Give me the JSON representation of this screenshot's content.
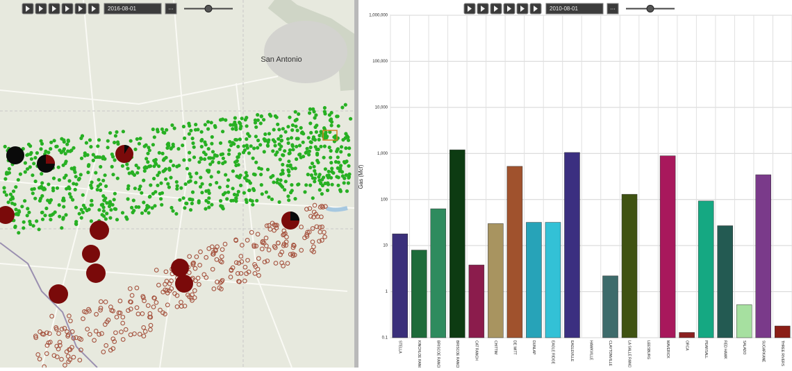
{
  "map_panel": {
    "toolbar": {
      "date": "2016-08-01",
      "more_button": "..."
    },
    "place_label": "San Antonio"
  },
  "chart_panel": {
    "toolbar": {
      "date": "2010-08-01",
      "more_button": "..."
    }
  },
  "chart_data": {
    "type": "bar",
    "ylabel": "Gas (Mcf)",
    "log_scale": true,
    "grid": true,
    "categories": [
      "STELLA",
      "KINCHLOE RANCH",
      "BRISCOE RANCH",
      "BRISCOE RANCH E",
      "CAT RANCH",
      "CHITTIM",
      "DE WITT",
      "DUNLAP",
      "EAGLE RIDGE",
      "EAGLEVILLE",
      "HAWKVILLE",
      "CLAYTONVILLE",
      "LA SALLE RANCH",
      "LEESBURG",
      "MAVERICK",
      "ORCA",
      "PEARSALL",
      "RED HAWK",
      "SALADO",
      "SUGARKANE",
      "THREE RIVERS"
    ],
    "values": [
      18,
      8,
      63,
      1200,
      3.8,
      30,
      525,
      32,
      32,
      1050,
      null,
      2.2,
      130,
      null,
      890,
      0.13,
      93,
      27,
      0.52,
      345,
      0.18
    ],
    "colors": [
      "#3a2f7a",
      "#1e6b3a",
      "#2e8b5e",
      "#0d3b12",
      "#8b1c4c",
      "#a89460",
      "#a0522d",
      "#27a3b8",
      "#33c1d6",
      "#3b2f80",
      "#888888",
      "#3d6b6b",
      "#3f5212",
      "#888888",
      "#a8185c",
      "#8b2020",
      "#15a882",
      "#235a52",
      "#a6e0a0",
      "#7a3a8a",
      "#8b1e16"
    ],
    "ylim": [
      0.1,
      1000000
    ],
    "yticks": [
      0.1,
      1,
      10,
      100,
      {
        "value": 1000,
        "label": "1,000"
      },
      {
        "value": 10000,
        "label": "10,000"
      },
      {
        "value": 100000,
        "label": "100,000"
      },
      {
        "value": 1000000,
        "label": "1,000,000"
      }
    ]
  }
}
